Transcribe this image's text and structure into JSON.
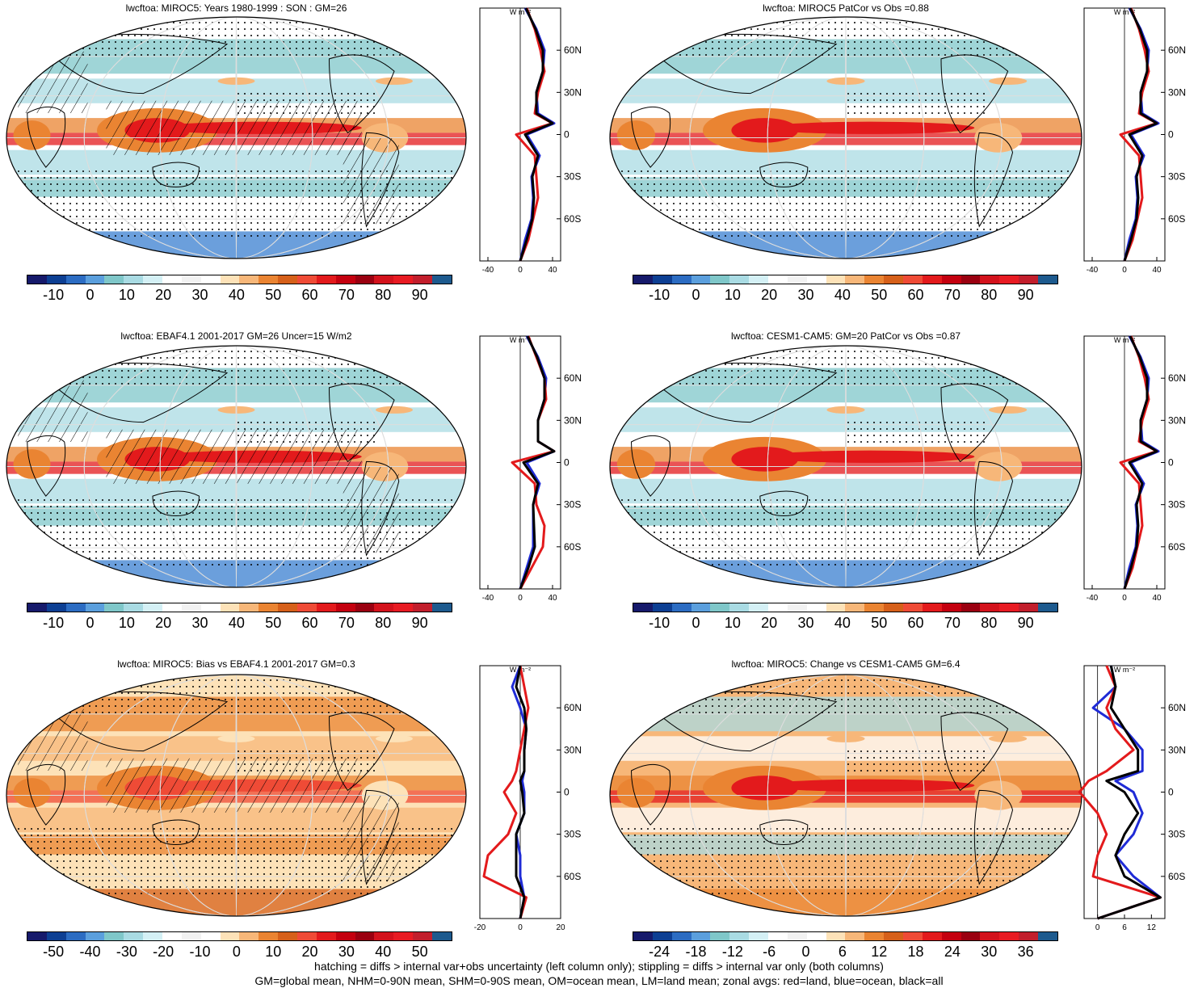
{
  "panels": [
    {
      "title": "lwcftoa: MIROC5: Years 1980-1999 : SON : GM=26",
      "cbar": [
        "-10",
        "0",
        "10",
        "20",
        "30",
        "40",
        "50",
        "60",
        "70",
        "80",
        "90"
      ],
      "palette": "abs",
      "hatch": true,
      "zonal": {
        "xticks": [
          "-40",
          "0",
          "40"
        ],
        "xmin": -50,
        "xmax": 50,
        "unit": "W m⁻²"
      }
    },
    {
      "title": "lwcftoa: MIROC5 PatCor vs Obs =0.88",
      "cbar": [
        "-10",
        "0",
        "10",
        "20",
        "30",
        "40",
        "50",
        "60",
        "70",
        "80",
        "90"
      ],
      "palette": "abs",
      "hatch": false,
      "zonal": {
        "xticks": [
          "-40",
          "0",
          "40"
        ],
        "xmin": -50,
        "xmax": 50,
        "unit": "W m⁻²"
      }
    },
    {
      "title": "lwcftoa: EBAF4.1 2001-2017 GM=26 Uncer=15 W/m2",
      "cbar": [
        "-10",
        "0",
        "10",
        "20",
        "30",
        "40",
        "50",
        "60",
        "70",
        "80",
        "90"
      ],
      "palette": "abs",
      "hatch": true,
      "zonal": {
        "xticks": [
          "-40",
          "0",
          "40"
        ],
        "xmin": -50,
        "xmax": 50,
        "unit": "W m⁻²"
      }
    },
    {
      "title": "lwcftoa: CESM1-CAM5: GM=20 PatCor vs Obs =0.87",
      "cbar": [
        "-10",
        "0",
        "10",
        "20",
        "30",
        "40",
        "50",
        "60",
        "70",
        "80",
        "90"
      ],
      "palette": "abs",
      "hatch": false,
      "zonal": {
        "xticks": [
          "-40",
          "0",
          "40"
        ],
        "xmin": -50,
        "xmax": 50,
        "unit": "W m⁻²"
      }
    },
    {
      "title": "lwcftoa: MIROC5: Bias vs EBAF4.1 2001-2017  GM=0.3",
      "cbar": [
        "-50",
        "-40",
        "-30",
        "-20",
        "-10",
        "0",
        "10",
        "20",
        "30",
        "40",
        "50"
      ],
      "palette": "diff",
      "hatch": true,
      "zonal": {
        "xticks": [
          "-20",
          "0",
          "20"
        ],
        "xmin": -20,
        "xmax": 20,
        "unit": "W m⁻²"
      }
    },
    {
      "title": "lwcftoa: MIROC5: Change vs CESM1-CAM5 GM=6.4",
      "cbar": [
        "-24",
        "-18",
        "-12",
        "-6",
        "0",
        "6",
        "12",
        "18",
        "24",
        "30",
        "36"
      ],
      "palette": "chg",
      "hatch": false,
      "zonal": {
        "xticks": [
          "0",
          "6",
          "12"
        ],
        "xmin": -3,
        "xmax": 15,
        "unit": "W m⁻²"
      }
    }
  ],
  "lat_labels": [
    "60N",
    "30N",
    "0",
    "30S",
    "60S"
  ],
  "colors": {
    "abs": [
      "#161a6b",
      "#0d3f93",
      "#2c6cc2",
      "#5b9fdd",
      "#7fc7c9",
      "#a9dbe3",
      "#d4f0f5",
      "#ffffff",
      "#f2f2f2",
      "#ffffff",
      "#fde2b8",
      "#f7b779",
      "#ea8432",
      "#d6601a",
      "#ef4b36",
      "#e31a1c",
      "#c4000f",
      "#9a0010",
      "#d3121c",
      "#e81b23",
      "#c21e2c",
      "#1d5a8e"
    ],
    "diff": [
      "#161a6b",
      "#0d3f93",
      "#2c6cc2",
      "#5b9fdd",
      "#7fc7c9",
      "#a9dbe3",
      "#d4f0f5",
      "#ffffff",
      "#f2f2f2",
      "#ffffff",
      "#fde2b8",
      "#f7b779",
      "#ea8432",
      "#d6601a",
      "#ef4b36",
      "#e31a1c",
      "#c4000f",
      "#9a0010",
      "#d3121c",
      "#e81b23",
      "#c21e2c",
      "#1d5a8e"
    ],
    "chg": [
      "#161a6b",
      "#0d3f93",
      "#2c6cc2",
      "#5b9fdd",
      "#7fc7c9",
      "#a9dbe3",
      "#d4f0f5",
      "#ffffff",
      "#f2f2f2",
      "#ffffff",
      "#fde2b8",
      "#f7b779",
      "#ea8432",
      "#d6601a",
      "#ef4b36",
      "#e31a1c",
      "#c4000f",
      "#9a0010",
      "#d3121c",
      "#e81b23",
      "#c21e2c",
      "#1d5a8e"
    ],
    "land": "#e31a1c",
    "ocean": "#1f2bd6",
    "all": "#000000"
  },
  "chart_data": {
    "type": "heatmap",
    "description_note": "",
    "zonal_lat": [
      -90,
      -75,
      -60,
      -45,
      -30,
      -15,
      0,
      8,
      15,
      30,
      45,
      60,
      75,
      90
    ],
    "zonal": [
      {
        "land": [
          0,
          10,
          16,
          22,
          20,
          18,
          -5,
          40,
          18,
          22,
          30,
          25,
          18,
          8
        ],
        "ocean": [
          0,
          6,
          14,
          16,
          14,
          24,
          8,
          42,
          22,
          20,
          28,
          30,
          20,
          6
        ],
        "all": [
          0,
          8,
          15,
          17,
          15,
          22,
          6,
          40,
          20,
          20,
          28,
          28,
          19,
          7
        ]
      },
      {
        "land": [
          0,
          10,
          16,
          22,
          20,
          18,
          -5,
          40,
          18,
          22,
          30,
          25,
          18,
          8
        ],
        "ocean": [
          0,
          6,
          14,
          16,
          14,
          24,
          8,
          42,
          22,
          20,
          28,
          30,
          20,
          6
        ],
        "all": [
          0,
          8,
          15,
          17,
          15,
          22,
          6,
          40,
          20,
          20,
          28,
          28,
          19,
          7
        ]
      },
      {
        "land": [
          0,
          14,
          28,
          30,
          20,
          18,
          -10,
          42,
          22,
          22,
          32,
          30,
          20,
          10
        ],
        "ocean": [
          0,
          8,
          16,
          16,
          16,
          24,
          8,
          42,
          22,
          22,
          30,
          32,
          22,
          8
        ],
        "all": [
          0,
          10,
          18,
          17,
          16,
          22,
          4,
          42,
          22,
          22,
          30,
          30,
          21,
          9
        ]
      },
      {
        "land": [
          0,
          10,
          16,
          22,
          20,
          18,
          -5,
          40,
          18,
          22,
          30,
          25,
          18,
          8
        ],
        "ocean": [
          0,
          6,
          14,
          16,
          14,
          24,
          8,
          42,
          22,
          20,
          28,
          30,
          20,
          6
        ],
        "all": [
          0,
          8,
          15,
          17,
          15,
          22,
          6,
          40,
          20,
          20,
          28,
          28,
          19,
          7
        ]
      },
      {
        "land": [
          0,
          3,
          -18,
          -16,
          -6,
          -2,
          -8,
          -4,
          -2,
          0,
          2,
          4,
          2,
          0
        ],
        "ocean": [
          0,
          2,
          0,
          0,
          -2,
          2,
          2,
          1,
          2,
          2,
          3,
          0,
          -4,
          0
        ],
        "all": [
          0,
          2,
          -2,
          -2,
          -2,
          2,
          1,
          0,
          2,
          2,
          3,
          2,
          -2,
          0
        ]
      },
      {
        "land": [
          0,
          14,
          -1,
          0,
          2,
          0,
          -4,
          -2,
          2,
          8,
          4,
          2,
          4,
          2
        ],
        "ocean": [
          0,
          14,
          8,
          4,
          8,
          10,
          8,
          4,
          10,
          10,
          6,
          -1,
          4,
          3
        ],
        "all": [
          0,
          14,
          6,
          4,
          6,
          9,
          6,
          2,
          9,
          9,
          6,
          3,
          4,
          3
        ]
      }
    ]
  },
  "footer": {
    "line1": "hatching = diffs > internal var+obs uncertainty (left column only); stippling = diffs > internal var only (both columns)",
    "line2": "GM=global mean, NHM=0-90N mean, SHM=0-90S mean, OM=ocean mean, LM=land mean; zonal avgs: red=land, blue=ocean, black=all"
  }
}
